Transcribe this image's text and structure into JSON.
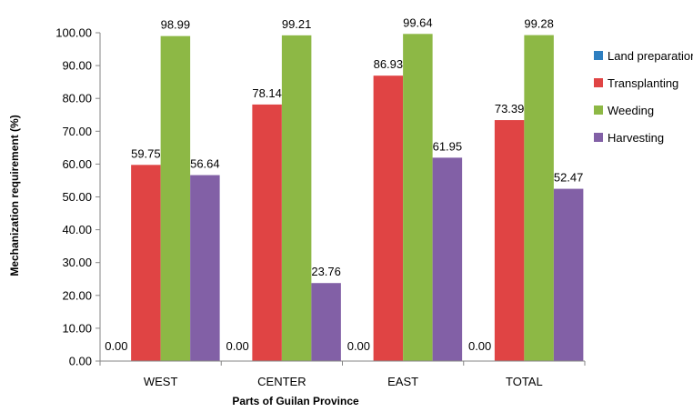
{
  "chart_data": {
    "type": "bar",
    "title": "",
    "xlabel": "Parts of  Guilan Province",
    "ylabel": "Mechanization  requirement (%)",
    "ylim": [
      0,
      100
    ],
    "yticks": [
      "0.00",
      "10.00",
      "20.00",
      "30.00",
      "40.00",
      "50.00",
      "60.00",
      "70.00",
      "80.00",
      "90.00",
      "100.00"
    ],
    "categories": [
      "WEST",
      "CENTER",
      "EAST",
      "TOTAL"
    ],
    "grid": false,
    "legend_position": "right",
    "series": [
      {
        "name": "Land preparation",
        "color": "#2E7FC0",
        "values": [
          0.0,
          0.0,
          0.0,
          0.0
        ],
        "labels": [
          "0.00",
          "0.00",
          "0.00",
          "0.00"
        ]
      },
      {
        "name": "Transplanting",
        "color": "#E04444",
        "values": [
          59.75,
          78.14,
          86.93,
          73.39
        ],
        "labels": [
          "59.75",
          "78.14",
          "86.93",
          "73.39"
        ]
      },
      {
        "name": "Weeding",
        "color": "#8DB845",
        "values": [
          98.99,
          99.21,
          99.64,
          99.28
        ],
        "labels": [
          "98.99",
          "99.21",
          "99.64",
          "99.28"
        ]
      },
      {
        "name": "Harvesting",
        "color": "#8260A6",
        "values": [
          56.64,
          23.76,
          61.95,
          52.47
        ],
        "labels": [
          "56.64",
          "23.76",
          "61.95",
          "52.47"
        ]
      }
    ]
  }
}
